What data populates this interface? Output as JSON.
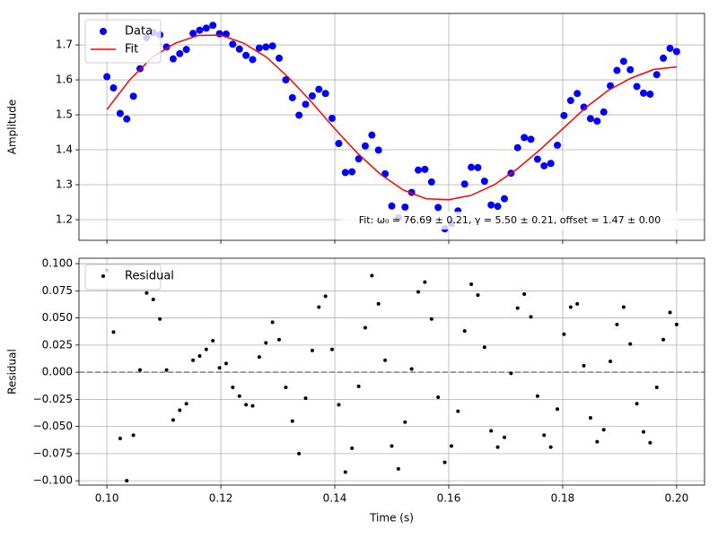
{
  "chart_data": [
    {
      "type": "scatter",
      "ylabel": "Amplitude",
      "legend": "upper left",
      "grid": true,
      "annotation": "Fit: ω₀ = 76.69 ± 0.21, γ = 5.50 ± 0.21, offset = 1.47 ± 0.00",
      "xlim": [
        0.0951,
        0.2049
      ],
      "ylim": [
        1.141,
        1.79
      ],
      "xticks": [
        0.1,
        0.12,
        0.14,
        0.16,
        0.18,
        0.2
      ],
      "yticks": [
        1.2,
        1.3,
        1.4,
        1.5,
        1.6,
        1.7
      ],
      "series": [
        {
          "name": "Data",
          "type": "scatter",
          "color": "#0000ff",
          "x": [
            0.1,
            0.10116,
            0.10233,
            0.10349,
            0.10465,
            0.10581,
            0.10698,
            0.10814,
            0.1093,
            0.11047,
            0.11163,
            0.11279,
            0.11395,
            0.11512,
            0.11628,
            0.11744,
            0.1186,
            0.11977,
            0.12093,
            0.12209,
            0.12326,
            0.12442,
            0.12558,
            0.12674,
            0.12791,
            0.12907,
            0.13023,
            0.1314,
            0.13256,
            0.13372,
            0.13488,
            0.13605,
            0.13721,
            0.13837,
            0.13953,
            0.1407,
            0.14186,
            0.14302,
            0.14419,
            0.14535,
            0.14651,
            0.14767,
            0.14884,
            0.15,
            0.15116,
            0.15233,
            0.15349,
            0.15465,
            0.15581,
            0.15698,
            0.15814,
            0.1593,
            0.16047,
            0.16163,
            0.16279,
            0.16395,
            0.16512,
            0.16628,
            0.16744,
            0.1686,
            0.16977,
            0.17093,
            0.17209,
            0.17326,
            0.17442,
            0.17558,
            0.17674,
            0.17791,
            0.17907,
            0.18023,
            0.1814,
            0.18256,
            0.18372,
            0.18488,
            0.18605,
            0.18721,
            0.18837,
            0.18953,
            0.1907,
            0.19186,
            0.19302,
            0.19419,
            0.19535,
            0.19651,
            0.19767,
            0.19884,
            0.2
          ],
          "values": [
            1.609,
            1.577,
            1.504,
            1.488,
            1.553,
            1.632,
            1.721,
            1.735,
            1.729,
            1.694,
            1.66,
            1.675,
            1.687,
            1.733,
            1.742,
            1.748,
            1.756,
            1.732,
            1.731,
            1.702,
            1.688,
            1.67,
            1.658,
            1.691,
            1.694,
            1.697,
            1.662,
            1.6,
            1.549,
            1.499,
            1.53,
            1.554,
            1.573,
            1.561,
            1.49,
            1.418,
            1.335,
            1.337,
            1.374,
            1.411,
            1.442,
            1.399,
            1.331,
            1.239,
            1.205,
            1.236,
            1.278,
            1.342,
            1.344,
            1.308,
            1.235,
            1.174,
            1.189,
            1.225,
            1.302,
            1.35,
            1.349,
            1.31,
            1.242,
            1.238,
            1.26,
            1.333,
            1.406,
            1.435,
            1.43,
            1.373,
            1.354,
            1.361,
            1.413,
            1.498,
            1.541,
            1.561,
            1.522,
            1.489,
            1.482,
            1.508,
            1.583,
            1.627,
            1.653,
            1.629,
            1.581,
            1.562,
            1.559,
            1.615,
            1.662,
            1.69,
            1.681
          ]
        },
        {
          "name": "Fit",
          "type": "line",
          "color": "#ff0000",
          "x": [
            0.1,
            0.104,
            0.108,
            0.112,
            0.116,
            0.12,
            0.124,
            0.128,
            0.132,
            0.136,
            0.14,
            0.144,
            0.148,
            0.152,
            0.156,
            0.16,
            0.164,
            0.168,
            0.172,
            0.176,
            0.18,
            0.184,
            0.188,
            0.192,
            0.196,
            0.2
          ],
          "values": [
            1.515,
            1.6,
            1.665,
            1.705,
            1.727,
            1.728,
            1.705,
            1.665,
            1.605,
            1.535,
            1.46,
            1.39,
            1.33,
            1.285,
            1.26,
            1.257,
            1.27,
            1.3,
            1.345,
            1.4,
            1.46,
            1.52,
            1.57,
            1.605,
            1.63,
            1.637
          ]
        }
      ]
    },
    {
      "type": "scatter",
      "ylabel": "Residual",
      "xlabel": "Time (s)",
      "legend": "upper left",
      "grid": true,
      "hline": 0,
      "xlim": [
        0.0951,
        0.2049
      ],
      "ylim": [
        -0.104,
        0.105
      ],
      "xticks": [
        {
          "value": 0.1,
          "label": "0.10"
        },
        {
          "value": 0.12,
          "label": "0.12"
        },
        {
          "value": 0.14,
          "label": "0.14"
        },
        {
          "value": 0.16,
          "label": "0.16"
        },
        {
          "value": 0.18,
          "label": "0.18"
        },
        {
          "value": 0.2,
          "label": "0.20"
        }
      ],
      "yticks": [
        {
          "value": -0.1,
          "label": "−0.100"
        },
        {
          "value": -0.075,
          "label": "−0.075"
        },
        {
          "value": -0.05,
          "label": "−0.050"
        },
        {
          "value": -0.025,
          "label": "−0.025"
        },
        {
          "value": 0,
          "label": "0.000"
        },
        {
          "value": 0.025,
          "label": "0.025"
        },
        {
          "value": 0.05,
          "label": "0.050"
        },
        {
          "value": 0.075,
          "label": "0.075"
        },
        {
          "value": 0.1,
          "label": "0.100"
        }
      ],
      "series": [
        {
          "name": "Residual",
          "type": "scatter",
          "color": "#000000",
          "x": [
            0.1,
            0.10116,
            0.10233,
            0.10349,
            0.10465,
            0.10581,
            0.10698,
            0.10814,
            0.1093,
            0.11047,
            0.11163,
            0.11279,
            0.11395,
            0.11512,
            0.11628,
            0.11744,
            0.1186,
            0.11977,
            0.12093,
            0.12209,
            0.12326,
            0.12442,
            0.12558,
            0.12674,
            0.12791,
            0.12907,
            0.13023,
            0.1314,
            0.13256,
            0.13372,
            0.13488,
            0.13605,
            0.13721,
            0.13837,
            0.13953,
            0.1407,
            0.14186,
            0.14302,
            0.14419,
            0.14535,
            0.14651,
            0.14767,
            0.14884,
            0.15,
            0.15116,
            0.15233,
            0.15349,
            0.15465,
            0.15581,
            0.15698,
            0.15814,
            0.1593,
            0.16047,
            0.16163,
            0.16279,
            0.16395,
            0.16512,
            0.16628,
            0.16744,
            0.1686,
            0.16977,
            0.17093,
            0.17209,
            0.17326,
            0.17442,
            0.17558,
            0.17674,
            0.17791,
            0.17907,
            0.18023,
            0.1814,
            0.18256,
            0.18372,
            0.18488,
            0.18605,
            0.18721,
            0.18837,
            0.18953,
            0.1907,
            0.19186,
            0.19302,
            0.19419,
            0.19535,
            0.19651,
            0.19767,
            0.19884,
            0.2
          ],
          "values": [
            0.094,
            0.037,
            -0.061,
            -0.1,
            -0.058,
            0.002,
            0.073,
            0.067,
            0.049,
            0.002,
            -0.044,
            -0.035,
            -0.029,
            0.011,
            0.015,
            0.021,
            0.029,
            0.004,
            0.008,
            -0.014,
            -0.022,
            -0.03,
            -0.031,
            0.014,
            0.027,
            0.046,
            0.03,
            -0.014,
            -0.045,
            -0.075,
            -0.024,
            0.02,
            0.06,
            0.07,
            0.021,
            -0.03,
            -0.092,
            -0.07,
            -0.013,
            0.041,
            0.089,
            0.063,
            0.011,
            -0.068,
            -0.089,
            -0.046,
            0.003,
            0.074,
            0.083,
            0.049,
            -0.023,
            -0.083,
            -0.068,
            -0.036,
            0.038,
            0.081,
            0.071,
            0.023,
            -0.054,
            -0.069,
            -0.06,
            -0.001,
            0.059,
            0.072,
            0.051,
            -0.022,
            -0.058,
            -0.069,
            -0.034,
            0.035,
            0.06,
            0.063,
            0.006,
            -0.042,
            -0.064,
            -0.053,
            0.01,
            0.044,
            0.06,
            0.026,
            -0.029,
            -0.055,
            -0.065,
            -0.014,
            0.03,
            0.055,
            0.044
          ]
        }
      ]
    }
  ]
}
